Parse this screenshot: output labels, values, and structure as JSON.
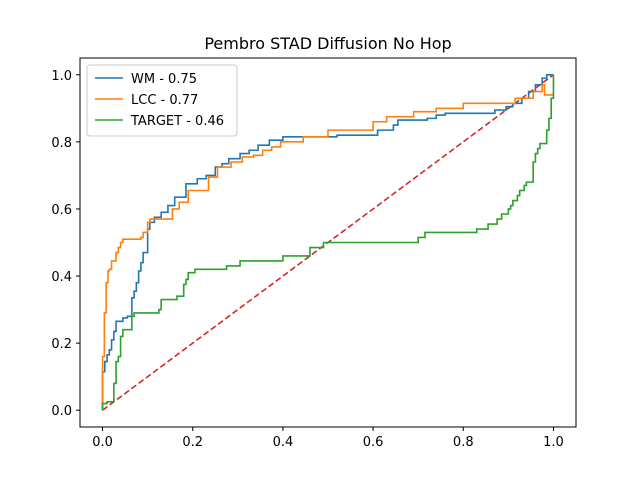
{
  "chart_data": {
    "type": "line",
    "title": "Pembro STAD Diffusion No Hop",
    "xlabel": "",
    "ylabel": "",
    "xlim": [
      -0.05,
      1.05
    ],
    "ylim": [
      -0.05,
      1.05
    ],
    "xticks": [
      "0.0",
      "0.2",
      "0.4",
      "0.6",
      "0.8",
      "1.0"
    ],
    "yticks": [
      "0.0",
      "0.2",
      "0.4",
      "0.6",
      "0.8",
      "1.0"
    ],
    "grid": false,
    "legend_position": "top-left",
    "series": [
      {
        "name": "WM - 0.75",
        "color": "#1f77b4",
        "style": "step",
        "x": [
          0.0,
          0.0,
          0.005,
          0.005,
          0.01,
          0.01,
          0.015,
          0.015,
          0.02,
          0.02,
          0.025,
          0.025,
          0.03,
          0.03,
          0.045,
          0.045,
          0.055,
          0.055,
          0.065,
          0.065,
          0.07,
          0.07,
          0.075,
          0.075,
          0.08,
          0.08,
          0.085,
          0.085,
          0.09,
          0.09,
          0.1,
          0.1,
          0.105,
          0.105,
          0.115,
          0.115,
          0.13,
          0.13,
          0.145,
          0.145,
          0.16,
          0.16,
          0.185,
          0.185,
          0.21,
          0.21,
          0.23,
          0.23,
          0.25,
          0.25,
          0.265,
          0.265,
          0.28,
          0.28,
          0.305,
          0.305,
          0.325,
          0.325,
          0.345,
          0.345,
          0.37,
          0.37,
          0.4,
          0.4,
          0.52,
          0.52,
          0.61,
          0.61,
          0.645,
          0.645,
          0.655,
          0.655,
          0.72,
          0.72,
          0.74,
          0.74,
          0.76,
          0.76,
          0.87,
          0.87,
          0.895,
          0.895,
          0.91,
          0.91,
          0.93,
          0.93,
          0.945,
          0.945,
          0.96,
          0.96,
          0.975,
          0.975,
          0.985,
          0.985,
          0.99,
          0.99,
          1.0
        ],
        "y": [
          0.0,
          0.115,
          0.115,
          0.145,
          0.145,
          0.165,
          0.165,
          0.18,
          0.18,
          0.21,
          0.21,
          0.235,
          0.235,
          0.265,
          0.265,
          0.275,
          0.275,
          0.28,
          0.28,
          0.335,
          0.335,
          0.355,
          0.355,
          0.38,
          0.38,
          0.415,
          0.415,
          0.44,
          0.44,
          0.47,
          0.47,
          0.54,
          0.54,
          0.56,
          0.56,
          0.575,
          0.575,
          0.59,
          0.59,
          0.61,
          0.61,
          0.635,
          0.635,
          0.675,
          0.675,
          0.69,
          0.69,
          0.7,
          0.7,
          0.725,
          0.725,
          0.735,
          0.735,
          0.75,
          0.75,
          0.765,
          0.765,
          0.775,
          0.775,
          0.79,
          0.79,
          0.805,
          0.805,
          0.815,
          0.815,
          0.82,
          0.82,
          0.835,
          0.835,
          0.85,
          0.85,
          0.865,
          0.865,
          0.87,
          0.87,
          0.88,
          0.88,
          0.885,
          0.885,
          0.895,
          0.895,
          0.905,
          0.905,
          0.915,
          0.915,
          0.93,
          0.93,
          0.95,
          0.95,
          0.97,
          0.97,
          0.99,
          0.99,
          1.0,
          1.0,
          1.0,
          1.0
        ]
      },
      {
        "name": "LCC - 0.77",
        "color": "#ff7f0e",
        "style": "step",
        "x": [
          0.0,
          0.0,
          0.004,
          0.004,
          0.008,
          0.008,
          0.012,
          0.012,
          0.015,
          0.015,
          0.02,
          0.02,
          0.03,
          0.03,
          0.035,
          0.035,
          0.04,
          0.04,
          0.045,
          0.045,
          0.085,
          0.085,
          0.09,
          0.09,
          0.1,
          0.1,
          0.105,
          0.105,
          0.155,
          0.155,
          0.17,
          0.17,
          0.19,
          0.19,
          0.235,
          0.235,
          0.255,
          0.255,
          0.285,
          0.285,
          0.31,
          0.31,
          0.335,
          0.335,
          0.355,
          0.355,
          0.375,
          0.375,
          0.395,
          0.395,
          0.445,
          0.445,
          0.5,
          0.5,
          0.6,
          0.6,
          0.63,
          0.63,
          0.69,
          0.69,
          0.74,
          0.74,
          0.8,
          0.8,
          0.915,
          0.915,
          0.955,
          0.955,
          0.975,
          0.975,
          0.98,
          0.98,
          0.995,
          0.995,
          1.0
        ],
        "y": [
          0.0,
          0.16,
          0.16,
          0.29,
          0.29,
          0.38,
          0.38,
          0.415,
          0.415,
          0.42,
          0.42,
          0.445,
          0.445,
          0.47,
          0.47,
          0.485,
          0.485,
          0.5,
          0.5,
          0.51,
          0.51,
          0.515,
          0.515,
          0.53,
          0.53,
          0.56,
          0.56,
          0.57,
          0.57,
          0.6,
          0.6,
          0.62,
          0.62,
          0.655,
          0.655,
          0.695,
          0.695,
          0.725,
          0.725,
          0.74,
          0.74,
          0.755,
          0.755,
          0.76,
          0.76,
          0.775,
          0.775,
          0.785,
          0.785,
          0.8,
          0.8,
          0.815,
          0.815,
          0.835,
          0.835,
          0.86,
          0.86,
          0.875,
          0.875,
          0.89,
          0.89,
          0.9,
          0.9,
          0.915,
          0.915,
          0.93,
          0.93,
          0.95,
          0.95,
          0.97,
          0.97,
          0.94,
          0.94,
          0.94,
          0.94
        ]
      },
      {
        "name": "TARGET - 0.46",
        "color": "#2ca02c",
        "style": "step",
        "x": [
          0.0,
          0.0,
          0.01,
          0.01,
          0.025,
          0.025,
          0.03,
          0.03,
          0.035,
          0.035,
          0.04,
          0.04,
          0.045,
          0.045,
          0.065,
          0.065,
          0.07,
          0.07,
          0.125,
          0.125,
          0.13,
          0.13,
          0.165,
          0.165,
          0.18,
          0.18,
          0.185,
          0.185,
          0.19,
          0.19,
          0.205,
          0.205,
          0.275,
          0.275,
          0.305,
          0.305,
          0.4,
          0.4,
          0.46,
          0.46,
          0.49,
          0.49,
          0.7,
          0.7,
          0.715,
          0.715,
          0.83,
          0.83,
          0.855,
          0.855,
          0.875,
          0.875,
          0.885,
          0.885,
          0.9,
          0.9,
          0.905,
          0.905,
          0.91,
          0.91,
          0.92,
          0.92,
          0.925,
          0.925,
          0.935,
          0.935,
          0.94,
          0.94,
          0.955,
          0.955,
          0.96,
          0.96,
          0.965,
          0.965,
          0.97,
          0.97,
          0.985,
          0.985,
          0.99,
          0.99,
          0.995,
          0.995,
          1.0,
          1.0
        ],
        "y": [
          0.0,
          0.02,
          0.02,
          0.025,
          0.025,
          0.08,
          0.08,
          0.145,
          0.145,
          0.16,
          0.16,
          0.22,
          0.22,
          0.24,
          0.24,
          0.28,
          0.28,
          0.29,
          0.29,
          0.3,
          0.3,
          0.33,
          0.33,
          0.34,
          0.34,
          0.375,
          0.375,
          0.39,
          0.39,
          0.41,
          0.41,
          0.42,
          0.42,
          0.43,
          0.43,
          0.445,
          0.445,
          0.46,
          0.46,
          0.485,
          0.485,
          0.5,
          0.5,
          0.515,
          0.515,
          0.53,
          0.53,
          0.54,
          0.54,
          0.555,
          0.555,
          0.57,
          0.57,
          0.585,
          0.585,
          0.6,
          0.6,
          0.61,
          0.61,
          0.625,
          0.625,
          0.64,
          0.64,
          0.655,
          0.655,
          0.67,
          0.67,
          0.68,
          0.68,
          0.74,
          0.74,
          0.765,
          0.765,
          0.78,
          0.78,
          0.795,
          0.795,
          0.835,
          0.835,
          0.87,
          0.87,
          0.93,
          0.93,
          1.0
        ]
      },
      {
        "name": "",
        "color": "#d62728",
        "style": "dashed",
        "x": [
          0.0,
          1.0
        ],
        "y": [
          0.0,
          1.0
        ]
      }
    ]
  }
}
